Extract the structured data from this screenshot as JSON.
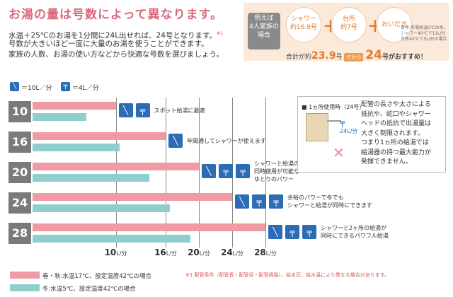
{
  "title": "お湯の量は号数によって異なります。",
  "intro": {
    "line1": "水温＋25℃のお湯を1分間に24L出せれば、24号となります。",
    "line1_sup": "※1",
    "line2": "号数が大きいほど一度に大量のお湯を使うことができます。",
    "line3": "家族の人数、お湯の使い方などから快適な号数を選びましょう。"
  },
  "example": {
    "label": "例えば\n4人家族の\n場合",
    "shower": "シャワー\n約16.9号",
    "kitchen": "台所\n約7号",
    "bath": "おいだき",
    "plus": "＋",
    "condition": "条件:冬場水温5℃の水、\nシャワー40℃で11L/分\n台所40℃で5L/分の場合",
    "total_prefix": "合計が約",
    "total_value": "23.9",
    "total_unit": "号",
    "arrow_label": "だから",
    "result_value": "24",
    "result_suffix": "号がおすすめ！"
  },
  "legend_top": {
    "shower_label": "＝10L／分",
    "faucet_label": "＝4L／分"
  },
  "rows": [
    {
      "label": "10",
      "unit": "号",
      "note": "スポット給湯に最適",
      "icons": [
        "shower",
        "faucet"
      ]
    },
    {
      "label": "16",
      "unit": "号",
      "note": "年間通してシャワーが使えます",
      "icons": [
        "shower"
      ]
    },
    {
      "label": "20",
      "unit": "号",
      "note": "シャワーと給湯の\n同時使用が可能な\nゆとりのパワー",
      "icons": [
        "shower",
        "faucet",
        "faucet"
      ]
    },
    {
      "label": "24",
      "unit": "号",
      "note": "余裕のパワーで冬でも\nシャワーと給湯が同時にできます",
      "icons": [
        "shower",
        "faucet",
        "faucet"
      ]
    },
    {
      "label": "28",
      "unit": "号",
      "note": "シャワーと2ヶ所の給湯が\n同時にできるパワフル給湯",
      "icons": [
        "shower",
        "faucet",
        "faucet"
      ]
    }
  ],
  "axis": {
    "ticks": [
      {
        "value": "10",
        "unit": "L/分"
      },
      {
        "value": "16",
        "unit": "L/分"
      },
      {
        "value": "20",
        "unit": "L/分"
      },
      {
        "value": "24",
        "unit": "L/分"
      },
      {
        "value": "28",
        "unit": "L/分"
      }
    ]
  },
  "side_box": {
    "header": "■ 1ヵ所使用時（24号）",
    "flow": "24L/分",
    "text": "配管の長さや太さによる\n抵抗や、蛇口やシャワー\nヘッドの抵抗で出湯量は\n大きく制限されます。\nつまり1ヵ所の給湯では\n給湯器の持つ最大能力が\n発揮できません。"
  },
  "bottom_legend": {
    "pink_label": "春・秋:水温17℃、設定温度42℃の場合",
    "teal_label": "冬:水温5℃、設定温度42℃の場合",
    "footnote": "※1 配管条件（配管長・配管径・配管経路）、給水圧、給水温により異なる場合があります。"
  },
  "colors": {
    "pink": "#ef9aa5",
    "teal": "#8ecfce",
    "accent": "#e07a30",
    "title": "#d86a7c",
    "icon_blue": "#2c6bb5"
  },
  "chart_data": {
    "type": "bar",
    "orientation": "horizontal",
    "categories": [
      "10号",
      "16号",
      "20号",
      "24号",
      "28号"
    ],
    "series": [
      {
        "name": "春・秋:水温17℃、設定温度42℃の場合",
        "values": [
          10,
          16,
          20,
          24,
          28
        ]
      },
      {
        "name": "冬:水温5℃、設定温度42℃の場合",
        "values": [
          6.5,
          10.5,
          14,
          16.5,
          19
        ]
      }
    ],
    "xunit": "L/分",
    "xticks": [
      10,
      16,
      20,
      24,
      28
    ]
  }
}
